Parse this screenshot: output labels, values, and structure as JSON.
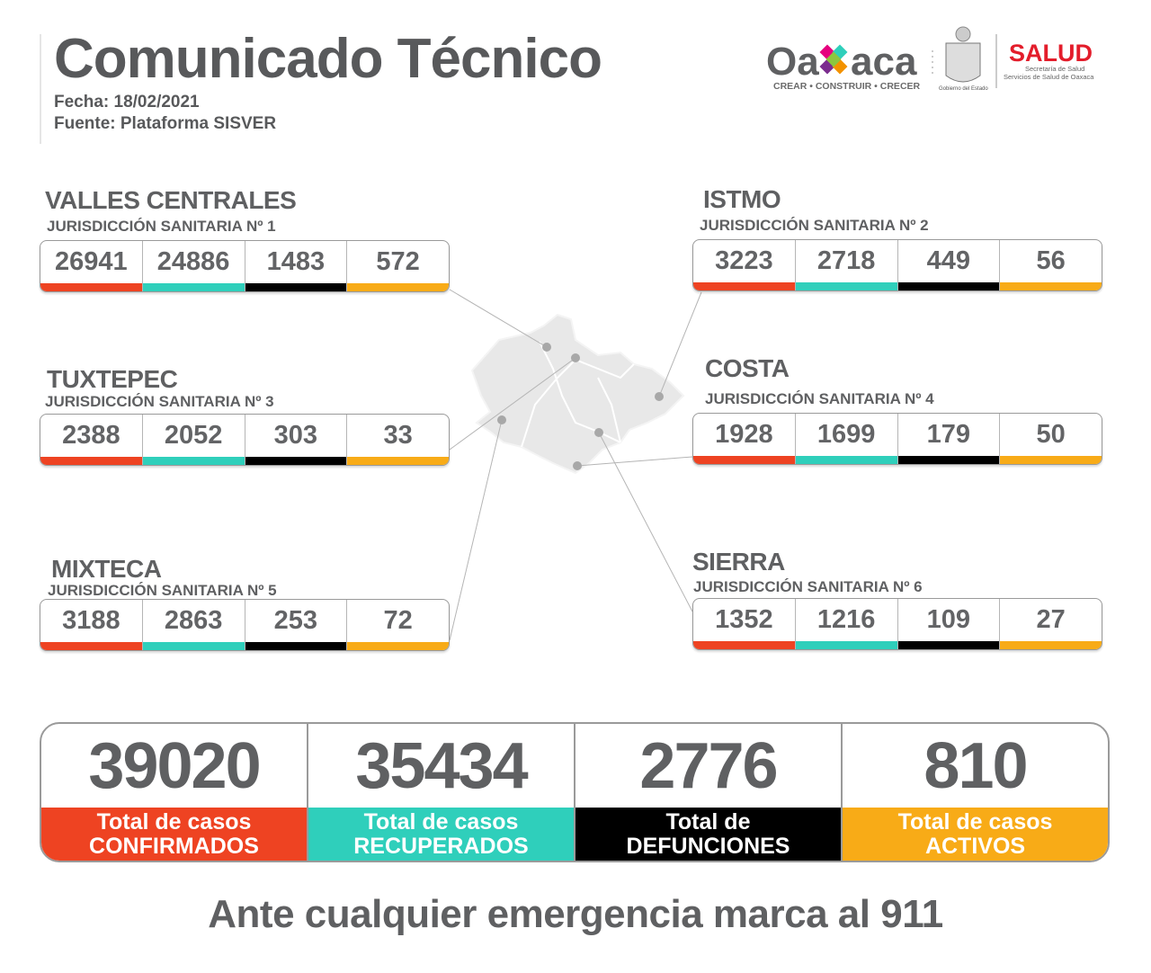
{
  "header": {
    "title": "Comunicado Técnico",
    "date": "Fecha: 18/02/2021",
    "source": "Fuente: Plataforma SISVER"
  },
  "logos": {
    "oaxaca": "Oaxaca",
    "slogan": "CREAR • CONSTRUIR • CRECER",
    "gobierno": "Gobierno del Estado",
    "salud": "SALUD",
    "salud_sub1": "Secretaría de Salud",
    "salud_sub2": "Servicios de Salud de Oaxaca"
  },
  "colors": {
    "confirmados": "#ee4322",
    "recuperados": "#2fcfbb",
    "defunciones": "#000000",
    "activos": "#f8ab17"
  },
  "regions": [
    {
      "name": "VALLES CENTRALES",
      "sub": "JURISDICCIÓN SANITARIA Nº 1",
      "values": [
        "26941",
        "24886",
        "1483",
        "572"
      ]
    },
    {
      "name": "ISTMO",
      "sub": "JURISDICCIÓN SANITARIA Nº 2",
      "values": [
        "3223",
        "2718",
        "449",
        "56"
      ]
    },
    {
      "name": "TUXTEPEC",
      "sub": "JURISDICCIÓN SANITARIA Nº 3",
      "values": [
        "2388",
        "2052",
        "303",
        "33"
      ]
    },
    {
      "name": "COSTA",
      "sub": "JURISDICCIÓN SANITARIA Nº 4",
      "values": [
        "1928",
        "1699",
        "179",
        "50"
      ]
    },
    {
      "name": "MIXTECA",
      "sub": "JURISDICCIÓN SANITARIA Nº 5",
      "values": [
        "3188",
        "2863",
        "253",
        "72"
      ]
    },
    {
      "name": "SIERRA",
      "sub": "JURISDICCIÓN SANITARIA Nº 6",
      "values": [
        "1352",
        "1216",
        "109",
        "27"
      ]
    }
  ],
  "totals": [
    {
      "value": "39020",
      "l1": "Total de casos",
      "l2": "CONFIRMADOS"
    },
    {
      "value": "35434",
      "l1": "Total de casos",
      "l2": "RECUPERADOS"
    },
    {
      "value": "2776",
      "l1": "Total de",
      "l2": "DEFUNCIONES"
    },
    {
      "value": "810",
      "l1": "Total de casos",
      "l2": "ACTIVOS"
    }
  ],
  "footer": "Ante cualquier emergencia marca al 911"
}
